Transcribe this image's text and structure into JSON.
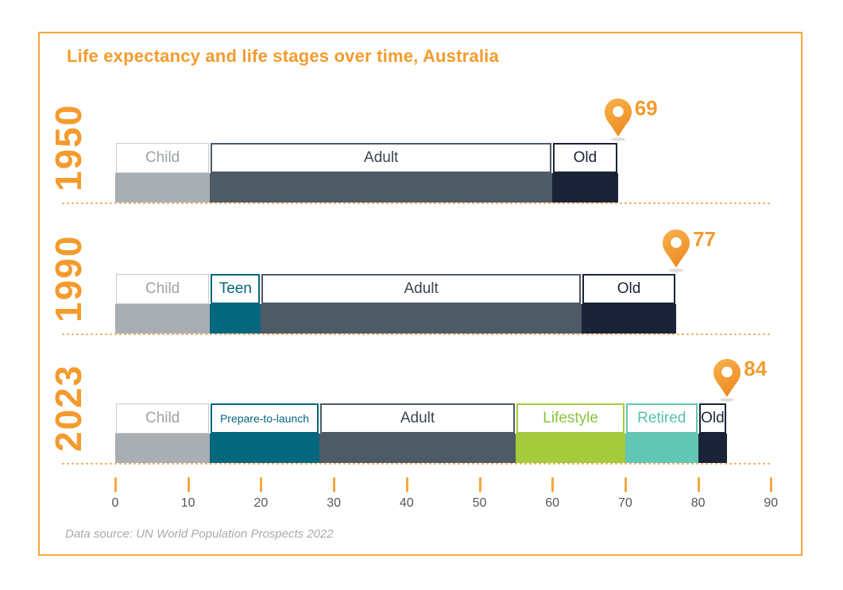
{
  "title": "Life expectancy and life stages over time, Australia",
  "source_note": "Data source: UN World Population Prospects 2022",
  "palette": {
    "accent": "#F49B2E",
    "frame_border": "#F5A73C",
    "tick": "#F6A83D",
    "dash": "#EFB577",
    "axis_label": "#54565B",
    "source_text": "#A7ABAE",
    "pin_gradient_top": "#F8B24C",
    "pin_gradient_bottom": "#EE8D26",
    "pin_shadow": "#D8D8D8",
    "segments": {
      "child": {
        "fill": "#A9AEB3",
        "border": "#C6CACD",
        "text": "#9DA3A8"
      },
      "teen": {
        "fill": "#04677E",
        "border": "#04677E",
        "text": "#04677E"
      },
      "adult": {
        "fill": "#4E5A65",
        "border": "#4E5A65",
        "text": "#3C4650"
      },
      "old": {
        "fill": "#1B2338",
        "border": "#1B2338",
        "text": "#1B2338"
      },
      "lifestyle": {
        "fill": "#A3CB3B",
        "border": "#A3CB3B",
        "text": "#89C440"
      },
      "retired": {
        "fill": "#62C6B5",
        "border": "#62C6B5",
        "text": "#57C0AE"
      }
    }
  },
  "chart_data": {
    "type": "bar",
    "orientation": "horizontal-stacked",
    "title": "Life expectancy and life stages over time, Australia",
    "xlim": [
      0,
      90
    ],
    "axis_ticks": [
      0,
      10,
      20,
      30,
      40,
      50,
      60,
      70,
      80,
      90
    ],
    "legend": "none",
    "rows": [
      {
        "year": "1950",
        "life_expectancy": 69,
        "segments": [
          {
            "label": "Child",
            "start": 0,
            "end": 13,
            "key": "child"
          },
          {
            "label": "Adult",
            "start": 13,
            "end": 60,
            "key": "adult"
          },
          {
            "label": "Old",
            "start": 60,
            "end": 69,
            "key": "old"
          }
        ]
      },
      {
        "year": "1990",
        "life_expectancy": 77,
        "segments": [
          {
            "label": "Child",
            "start": 0,
            "end": 13,
            "key": "child"
          },
          {
            "label": "Teen",
            "start": 13,
            "end": 20,
            "key": "teen"
          },
          {
            "label": "Adult",
            "start": 20,
            "end": 64,
            "key": "adult"
          },
          {
            "label": "Old",
            "start": 64,
            "end": 77,
            "key": "old"
          }
        ]
      },
      {
        "year": "2023",
        "life_expectancy": 84,
        "segments": [
          {
            "label": "Child",
            "start": 0,
            "end": 13,
            "key": "child"
          },
          {
            "label": "Prepare-to-launch",
            "start": 13,
            "end": 28,
            "key": "teen"
          },
          {
            "label": "Adult",
            "start": 28,
            "end": 55,
            "key": "adult"
          },
          {
            "label": "Lifestyle",
            "start": 55,
            "end": 70,
            "key": "lifestyle"
          },
          {
            "label": "Retired",
            "start": 70,
            "end": 80,
            "key": "retired"
          },
          {
            "label": "Old",
            "start": 80,
            "end": 84,
            "key": "old"
          }
        ]
      }
    ]
  }
}
